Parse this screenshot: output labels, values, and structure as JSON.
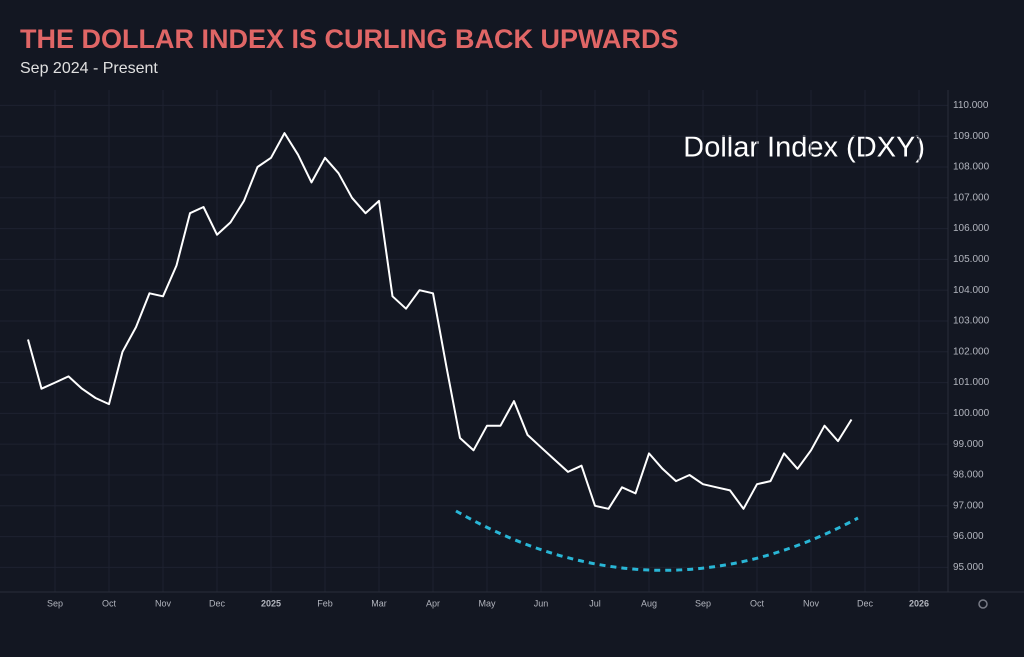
{
  "chart_data": {
    "type": "line",
    "title": "THE DOLLAR INDEX IS CURLING BACK UPWARDS",
    "subtitle": "Sep 2024 - Present",
    "annotation": "Dollar Index (DXY)",
    "categories": [
      null,
      null,
      "Sep",
      null,
      null,
      null,
      "Oct",
      null,
      null,
      null,
      "Nov",
      null,
      null,
      null,
      "Dec",
      null,
      null,
      null,
      "2025",
      null,
      null,
      null,
      "Feb",
      null,
      null,
      null,
      "Mar",
      null,
      null,
      null,
      "Apr",
      null,
      null,
      null,
      "May",
      null,
      null,
      null,
      "Jun",
      null,
      null,
      null,
      "Jul",
      null,
      null,
      null,
      "Aug",
      null,
      null,
      null,
      "Sep",
      null,
      null,
      null,
      "Oct",
      null,
      null,
      null,
      "Nov",
      null,
      null,
      null,
      "Dec",
      null,
      null,
      null,
      "2026",
      null,
      null
    ],
    "values": [
      102.4,
      100.8,
      101.0,
      101.2,
      100.8,
      100.5,
      100.3,
      102.0,
      102.8,
      103.9,
      103.8,
      104.8,
      106.5,
      106.7,
      105.8,
      106.2,
      106.9,
      108.0,
      108.3,
      109.1,
      108.4,
      107.5,
      108.3,
      107.8,
      107.0,
      106.5,
      106.9,
      103.8,
      103.4,
      104.0,
      103.9,
      101.5,
      99.2,
      98.8,
      99.6,
      99.6,
      100.4,
      99.3,
      98.9,
      98.5,
      98.1,
      98.3,
      97.0,
      96.9,
      97.6,
      97.4,
      98.7,
      98.2,
      97.8,
      98.0,
      97.7,
      97.6,
      97.5,
      96.9,
      97.7,
      97.8,
      98.7,
      98.2,
      98.8,
      99.6,
      99.1,
      99.8,
      null,
      null,
      null,
      null,
      null,
      null,
      null
    ],
    "color": "#ffffff",
    "ylim": [
      94.2,
      110.5
    ],
    "yticks": [
      {
        "value": 95,
        "label": "95.000"
      },
      {
        "value": 96,
        "label": "96.000"
      },
      {
        "value": 97,
        "label": "97.000"
      },
      {
        "value": 98,
        "label": "98.000"
      },
      {
        "value": 99,
        "label": "99.000"
      },
      {
        "value": 100,
        "label": "100.000"
      },
      {
        "value": 101,
        "label": "101.000"
      },
      {
        "value": 102,
        "label": "102.000"
      },
      {
        "value": 103,
        "label": "103.000"
      },
      {
        "value": 104,
        "label": "104.000"
      },
      {
        "value": 105,
        "label": "105.000"
      },
      {
        "value": 106,
        "label": "106.000"
      },
      {
        "value": 107,
        "label": "107.000"
      },
      {
        "value": 108,
        "label": "108.000"
      },
      {
        "value": 109,
        "label": "109.000"
      },
      {
        "value": 110,
        "label": "110.000"
      }
    ],
    "grid": true
  }
}
